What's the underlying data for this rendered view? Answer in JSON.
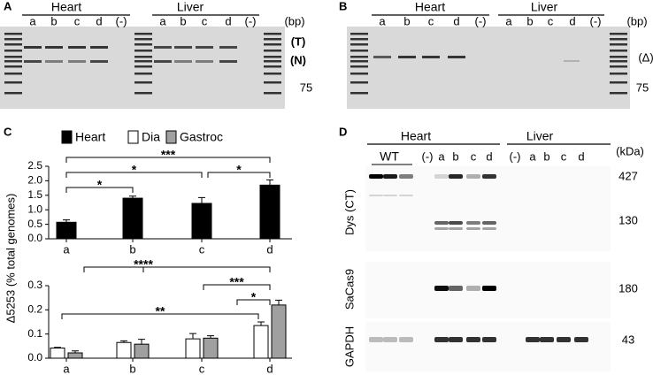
{
  "panel_a": {
    "letter": "A",
    "groups": [
      {
        "name": "Heart",
        "lanes": [
          "a",
          "b",
          "c",
          "d",
          "(-)"
        ]
      },
      {
        "name": "Liver",
        "lanes": [
          "a",
          "b",
          "c",
          "d",
          "(-)"
        ]
      }
    ],
    "unit": "(bp)",
    "bands": [
      "(T)",
      "(N)"
    ],
    "size_label": "75"
  },
  "panel_b": {
    "letter": "B",
    "groups": [
      {
        "name": "Heart",
        "lanes": [
          "a",
          "b",
          "c",
          "d",
          "(-)"
        ]
      },
      {
        "name": "Liver",
        "lanes": [
          "a",
          "b",
          "c",
          "d",
          "(-)"
        ]
      }
    ],
    "unit": "(bp)",
    "band": "(Δ)",
    "size_label": "75"
  },
  "panel_c": {
    "letter": "C",
    "y_label": "Δ5253 (% total genomes)"
  },
  "chart_data": [
    {
      "type": "bar",
      "categories": [
        "a",
        "b",
        "c",
        "d"
      ],
      "series": [
        {
          "name": "Heart",
          "color": "#000000",
          "values": [
            0.57,
            1.4,
            1.22,
            1.85
          ],
          "errors": [
            0.08,
            0.07,
            0.2,
            0.18
          ]
        }
      ],
      "ylim": [
        0,
        2.5
      ],
      "yticks": [
        {
          "value": 0,
          "label": "0.0"
        },
        {
          "value": 0.5,
          "label": "0.5"
        },
        {
          "value": 1,
          "label": "1.0"
        },
        {
          "value": 1.5,
          "label": "1.5"
        },
        {
          "value": 2,
          "label": "2.0"
        },
        {
          "value": 2.5,
          "label": "2.5"
        }
      ],
      "significance": [
        "***",
        "*",
        "*",
        "*"
      ]
    },
    {
      "type": "bar",
      "categories": [
        "a",
        "b",
        "c",
        "d"
      ],
      "series": [
        {
          "name": "Dia",
          "color": "#ffffff",
          "values": [
            0.042,
            0.065,
            0.08,
            0.135
          ],
          "errors": [
            0.003,
            0.007,
            0.022,
            0.015
          ]
        },
        {
          "name": "Gastroc",
          "color": "#a0a0a0",
          "values": [
            0.022,
            0.058,
            0.083,
            0.22
          ],
          "errors": [
            0.008,
            0.02,
            0.01,
            0.02
          ]
        }
      ],
      "ylim": [
        0,
        0.3
      ],
      "yticks": [
        {
          "value": 0,
          "label": "0.0"
        },
        {
          "value": 0.1,
          "label": "0.1"
        },
        {
          "value": 0.2,
          "label": "0.2"
        },
        {
          "value": 0.3,
          "label": "0.3"
        }
      ],
      "significance": [
        "****",
        "***",
        "*",
        "**"
      ]
    }
  ],
  "panel_d": {
    "letter": "D",
    "groups": [
      {
        "name": "Heart",
        "lanes": [
          "WT",
          "(-)",
          "a",
          "b",
          "c",
          "d"
        ]
      },
      {
        "name": "Liver",
        "lanes": [
          "(-)",
          "a",
          "b",
          "c",
          "d"
        ]
      }
    ],
    "unit": "(kDa)",
    "rows": [
      {
        "label": "Dys (CT)",
        "sizes": [
          "427",
          "130"
        ]
      },
      {
        "label": "SaCas9",
        "sizes": [
          "180"
        ]
      },
      {
        "label": "GAPDH",
        "sizes": [
          "43"
        ]
      }
    ]
  }
}
